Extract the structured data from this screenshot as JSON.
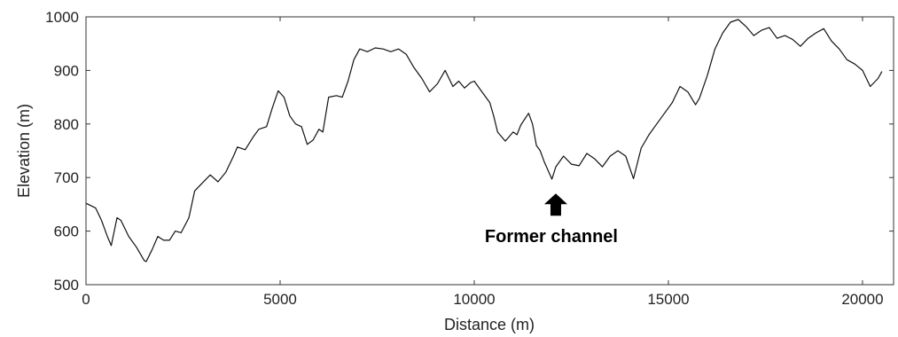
{
  "chart_data": {
    "type": "line",
    "title": "",
    "xlabel": "Distance (m)",
    "ylabel": "Elevation (m)",
    "xlim": [
      0,
      20800
    ],
    "ylim": [
      500,
      1000
    ],
    "x_ticks": [
      0,
      5000,
      10000,
      15000,
      20000
    ],
    "y_ticks": [
      500,
      600,
      700,
      800,
      900,
      1000
    ],
    "x_tick_labels": [
      "0",
      "5000",
      "10000",
      "15000",
      "20000"
    ],
    "y_tick_labels": [
      "500",
      "600",
      "700",
      "800",
      "900",
      "1000"
    ],
    "grid": false,
    "legend": "none",
    "line_color": "#111111",
    "series": [
      {
        "x": [
          0,
          250,
          400,
          550,
          650,
          800,
          900,
          1100,
          1300,
          1500,
          1550,
          1700,
          1850,
          2000,
          2150,
          2300,
          2450,
          2650,
          2800,
          3000,
          3200,
          3400,
          3600,
          3800,
          3900,
          4100,
          4300,
          4450,
          4650,
          4800,
          4950,
          5100,
          5250,
          5400,
          5550,
          5700,
          5850,
          6000,
          6100,
          6250,
          6450,
          6600,
          6750,
          6900,
          7050,
          7250,
          7450,
          7650,
          7850,
          8050,
          8250,
          8450,
          8650,
          8850,
          9050,
          9250,
          9450,
          9600,
          9750,
          9900,
          10000,
          10200,
          10400,
          10500,
          10600,
          10800,
          11000,
          11100,
          11200,
          11400,
          11500,
          11600,
          11700,
          11800,
          12000,
          12100,
          12300,
          12500,
          12700,
          12900,
          13100,
          13300,
          13500,
          13700,
          13900,
          14100,
          14300,
          14500,
          14700,
          14900,
          15100,
          15300,
          15500,
          15700,
          15800,
          16000,
          16200,
          16400,
          16600,
          16800,
          17000,
          17200,
          17400,
          17600,
          17800,
          18000,
          18200,
          18400,
          18600,
          18800,
          19000,
          19200,
          19400,
          19600,
          19800,
          20000,
          20200,
          20400,
          20500
        ],
        "y": [
          652,
          643,
          620,
          590,
          573,
          625,
          620,
          590,
          570,
          545,
          543,
          565,
          590,
          583,
          583,
          600,
          597,
          625,
          675,
          690,
          705,
          692,
          710,
          740,
          757,
          752,
          775,
          790,
          795,
          830,
          862,
          850,
          815,
          800,
          795,
          762,
          770,
          790,
          785,
          850,
          853,
          850,
          880,
          920,
          940,
          935,
          942,
          940,
          935,
          940,
          930,
          905,
          885,
          860,
          875,
          900,
          870,
          880,
          867,
          877,
          880,
          860,
          840,
          815,
          785,
          768,
          785,
          780,
          798,
          820,
          800,
          760,
          750,
          730,
          697,
          720,
          740,
          725,
          722,
          745,
          735,
          720,
          740,
          750,
          740,
          698,
          755,
          780,
          800,
          820,
          840,
          870,
          860,
          836,
          848,
          890,
          940,
          970,
          990,
          995,
          982,
          965,
          975,
          980,
          960,
          965,
          958,
          945,
          960,
          970,
          978,
          955,
          940,
          920,
          912,
          900,
          870,
          885,
          898
        ]
      }
    ],
    "annotations": [
      {
        "text": "Former channel",
        "x": 12100,
        "y": 700
      }
    ]
  }
}
